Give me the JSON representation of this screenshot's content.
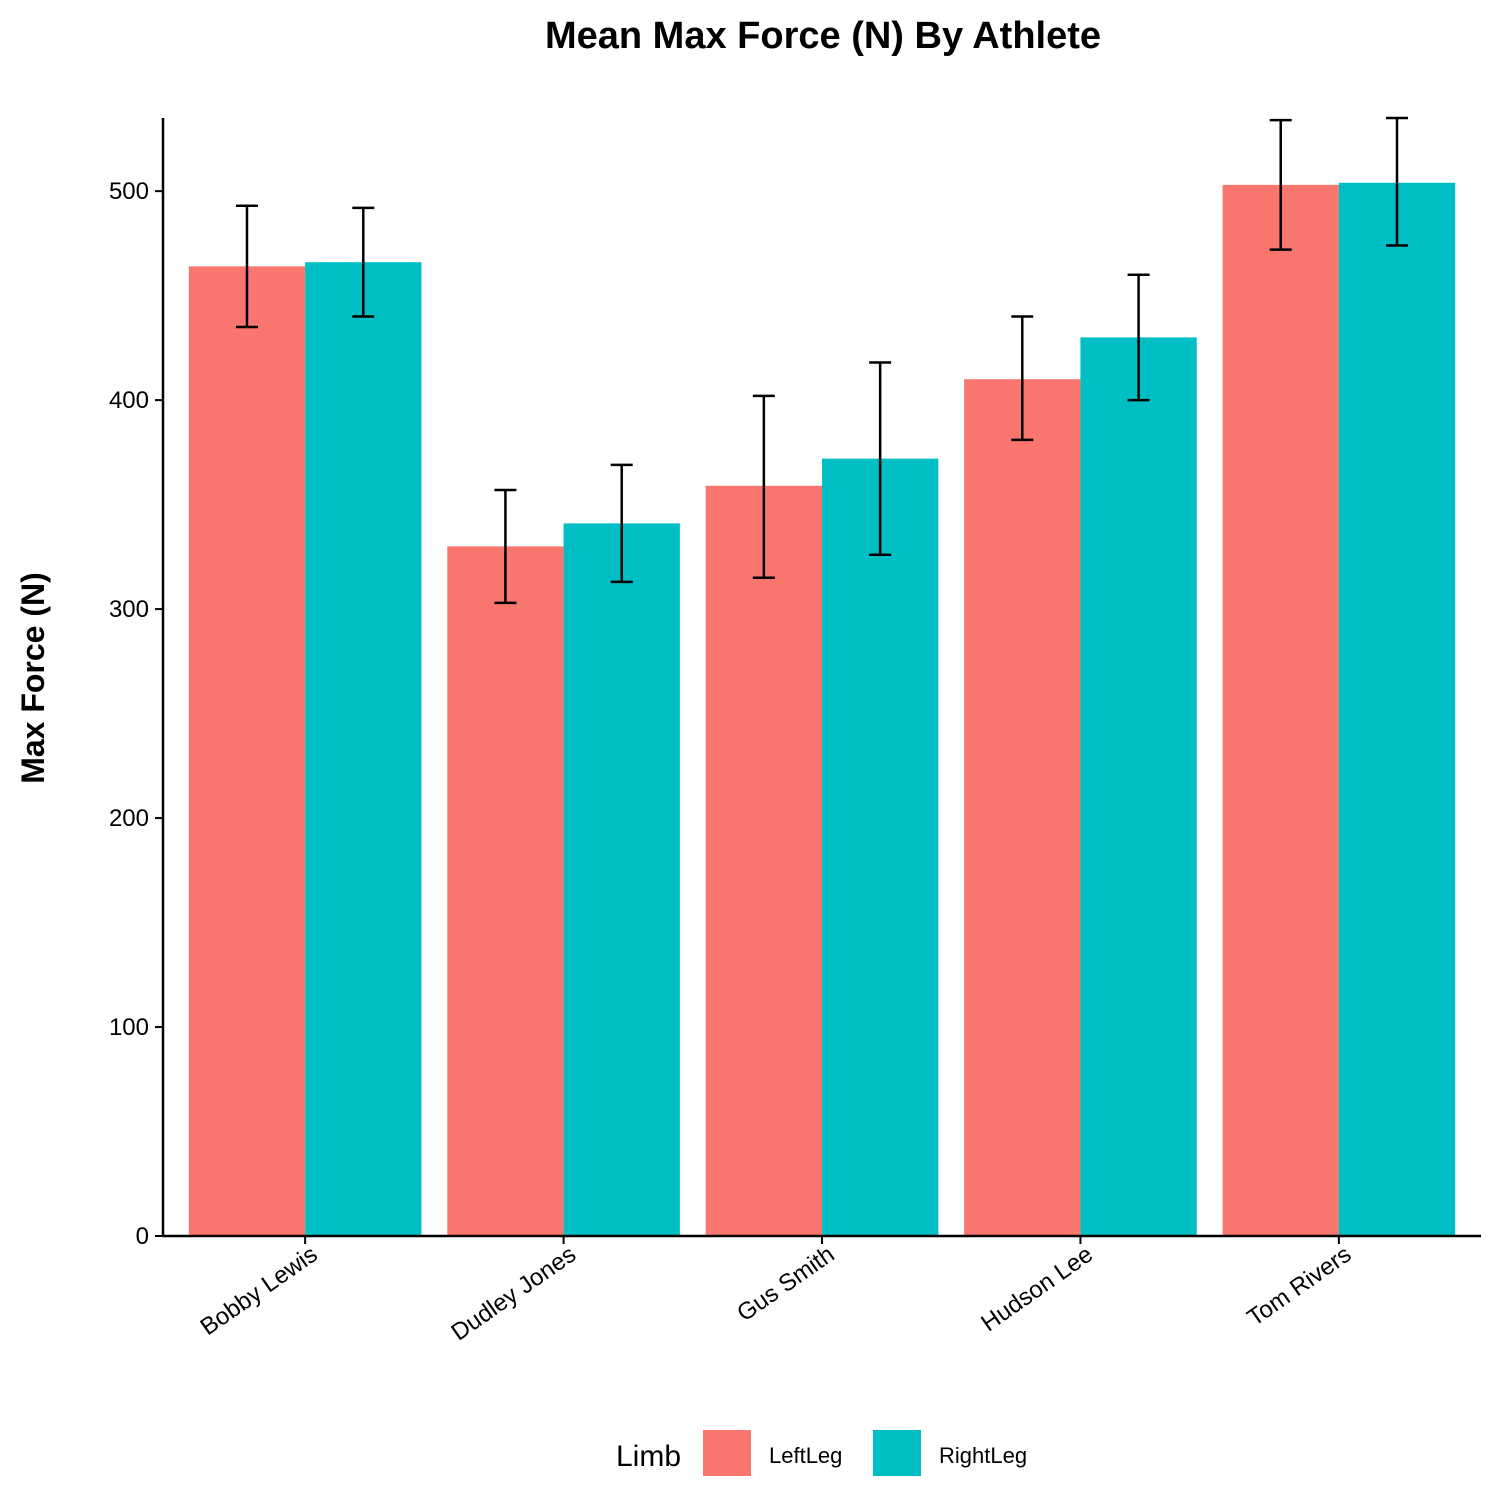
{
  "chart_data": {
    "type": "bar",
    "title": "Mean Max Force (N) By Athlete",
    "xlabel": "",
    "ylabel": "Max Force (N)",
    "ylim": [
      0,
      535
    ],
    "yticks": [
      0,
      100,
      200,
      300,
      400,
      500
    ],
    "categories": [
      "Bobby Lewis",
      "Dudley Jones",
      "Gus Smith",
      "Hudson Lee",
      "Tom Rivers"
    ],
    "legend_title": "Limb",
    "legend_position": "bottom",
    "grid": false,
    "series": [
      {
        "name": "LeftLeg",
        "color": "#F8766D",
        "values": [
          464,
          330,
          359,
          410,
          503
        ],
        "error_low": [
          435,
          303,
          315,
          381,
          472
        ],
        "error_high": [
          493,
          357,
          402,
          440,
          534
        ]
      },
      {
        "name": "RightLeg",
        "color": "#00BFC4",
        "values": [
          466,
          341,
          372,
          430,
          504
        ],
        "error_low": [
          440,
          313,
          326,
          400,
          474
        ],
        "error_high": [
          492,
          369,
          418,
          460,
          535
        ]
      }
    ]
  }
}
